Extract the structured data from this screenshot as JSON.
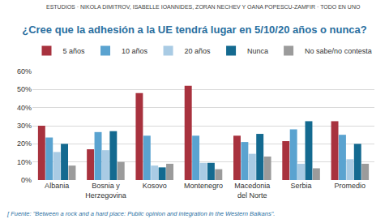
{
  "header": "ESTUDIOS · NIKOLA DIMITROV, ISABELLE IOANNIDES, ZORAN NECHEV Y OANA POPESCU-ZAMFIR · TODO EN UNO",
  "source": "[ Fuente: \"Between a rock and a hard place: Public opinion and integration in the Western Balkans\".",
  "chart_data": {
    "type": "bar",
    "title": "¿Cree que la adhesión a la UE tendrá lugar en 5/10/20 años o nunca?",
    "categories": [
      "Albania",
      "Bosnia y Herzegovina",
      "Kosovo",
      "Montenegro",
      "Macedonia del Norte",
      "Serbia",
      "Promedio"
    ],
    "series": [
      {
        "name": "5 años",
        "color": "#a8323e",
        "values": [
          30,
          17,
          48,
          52,
          24.5,
          21.5,
          32.5
        ]
      },
      {
        "name": "10 años",
        "color": "#5aa3d0",
        "values": [
          23.5,
          26.5,
          24.5,
          24.5,
          21,
          28,
          25
        ]
      },
      {
        "name": "20 años",
        "color": "#a9cbe4",
        "values": [
          15.5,
          16.5,
          8,
          9.5,
          14.5,
          9,
          11.5
        ]
      },
      {
        "name": "Nunca",
        "color": "#146a90",
        "values": [
          20,
          27,
          7,
          9.5,
          25.5,
          32.5,
          20
        ]
      },
      {
        "name": "No sabe/no contesta",
        "color": "#9b9b9b",
        "values": [
          8,
          10,
          9,
          6,
          13,
          6.5,
          9
        ]
      }
    ],
    "ylim": [
      0,
      60
    ],
    "yticks": [
      {
        "value": 0,
        "label": "0%"
      },
      {
        "value": 10,
        "label": "10%"
      },
      {
        "value": 20,
        "label": "20%"
      },
      {
        "value": 30,
        "label": "30%"
      },
      {
        "value": 40,
        "label": "40%"
      },
      {
        "value": 50,
        "label": "50%"
      },
      {
        "value": 60,
        "label": "60%"
      }
    ],
    "grid": true,
    "legend": "top"
  }
}
